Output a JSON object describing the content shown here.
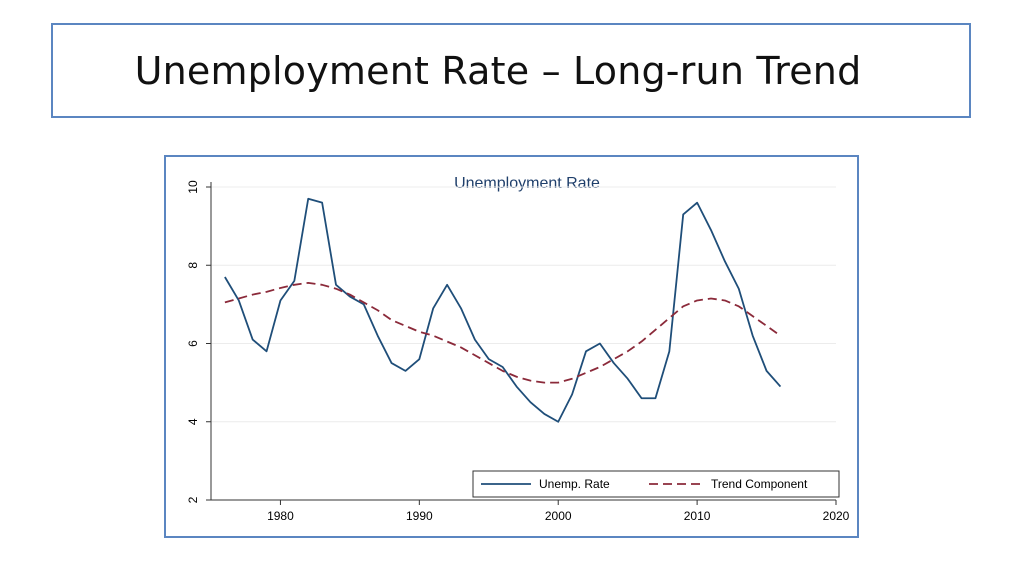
{
  "slide": {
    "title": "Unemployment Rate – Long-run Trend"
  },
  "colors": {
    "rate_line": "#1f4e79",
    "trend_line": "#8b2a3a",
    "frame": "#5b86c1",
    "title_text": "#1f3f6b",
    "grid": "#ececec"
  },
  "chart_data": {
    "type": "line",
    "title": "Unemployment Rate",
    "xlabel": "",
    "ylabel": "",
    "xlim": [
      1975,
      2020
    ],
    "ylim": [
      2,
      10
    ],
    "x_ticks": [
      1980,
      1990,
      2000,
      2010,
      2020
    ],
    "y_ticks": [
      2,
      4,
      6,
      8,
      10
    ],
    "legend_position": "bottom-right",
    "x": [
      1976,
      1977,
      1978,
      1979,
      1980,
      1981,
      1982,
      1983,
      1984,
      1985,
      1986,
      1987,
      1988,
      1989,
      1990,
      1991,
      1992,
      1993,
      1994,
      1995,
      1996,
      1997,
      1998,
      1999,
      2000,
      2001,
      2002,
      2003,
      2004,
      2005,
      2006,
      2007,
      2008,
      2009,
      2010,
      2011,
      2012,
      2013,
      2014,
      2015,
      2016
    ],
    "series": [
      {
        "name": "Unemp. Rate",
        "style": "solid",
        "values": [
          7.7,
          7.1,
          6.1,
          5.8,
          7.1,
          7.6,
          9.7,
          9.6,
          7.5,
          7.2,
          7.0,
          6.2,
          5.5,
          5.3,
          5.6,
          6.9,
          7.5,
          6.9,
          6.1,
          5.6,
          5.4,
          4.9,
          4.5,
          4.2,
          4.0,
          4.7,
          5.8,
          6.0,
          5.5,
          5.1,
          4.6,
          4.6,
          5.8,
          9.3,
          9.6,
          8.9,
          8.1,
          7.4,
          6.2,
          5.3,
          4.9
        ]
      },
      {
        "name": "Trend Component",
        "style": "dashed",
        "values": [
          7.05,
          7.15,
          7.25,
          7.32,
          7.42,
          7.5,
          7.55,
          7.5,
          7.4,
          7.25,
          7.05,
          6.85,
          6.6,
          6.45,
          6.3,
          6.2,
          6.05,
          5.9,
          5.7,
          5.5,
          5.3,
          5.15,
          5.05,
          5.0,
          5.0,
          5.1,
          5.25,
          5.4,
          5.6,
          5.8,
          6.05,
          6.35,
          6.65,
          6.95,
          7.1,
          7.15,
          7.1,
          6.95,
          6.7,
          6.45,
          6.2
        ]
      }
    ]
  }
}
